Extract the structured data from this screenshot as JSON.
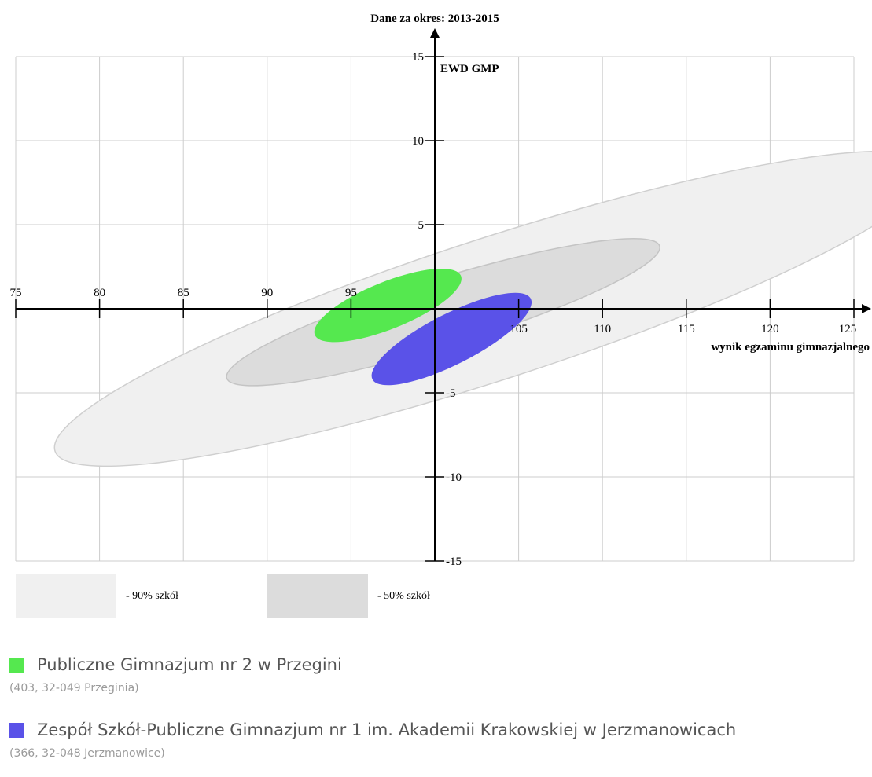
{
  "chart_data": {
    "type": "scatter",
    "title": "Dane za okres: 2013-2015",
    "xlabel": "wynik egzaminu gimnazjalnego",
    "ylabel": "EWD GMP",
    "xlim": [
      75,
      125
    ],
    "ylim": [
      -15,
      15
    ],
    "x_ticks": [
      75,
      80,
      85,
      90,
      95,
      105,
      110,
      115,
      120,
      125
    ],
    "y_ticks": [
      15,
      10,
      5,
      -5,
      -10,
      -15
    ],
    "grid": true,
    "regions": [
      {
        "name": "90% szkół",
        "color": "#f0f0f0",
        "stroke": "#cfcfcf",
        "cx": 103.5,
        "cy": 0,
        "rx": 27.5,
        "ry": 4.2,
        "angle_deg": -18
      },
      {
        "name": "50% szkół",
        "color": "#dcdcdc",
        "stroke": "#c4c4c4",
        "cx": 100.5,
        "cy": -0.2,
        "rx": 13.5,
        "ry": 2.0,
        "angle_deg": -17
      }
    ],
    "series": [
      {
        "name": "Publiczne Gimnazjum nr 2 w Przegini",
        "color": "#55e84f",
        "cx": 97.2,
        "cy": 0.2,
        "rx": 4.7,
        "ry": 1.4,
        "angle_deg": -22
      },
      {
        "name": "Zespół Szkół-Publiczne Gimnazjum nr 1 im. Akademii Krakowskiej w Jerzmanowicach",
        "color": "#5a52e8",
        "cx": 101.0,
        "cy": -1.8,
        "rx": 5.3,
        "ry": 1.5,
        "angle_deg": -27
      }
    ]
  },
  "legend": {
    "items": [
      {
        "label": "- 90% szkół",
        "color": "#f0f0f0"
      },
      {
        "label": "- 50% szkół",
        "color": "#dcdcdc"
      }
    ]
  },
  "schools": [
    {
      "name": "Publiczne Gimnazjum nr 2 w Przegini",
      "details": "(403, 32-049 Przeginia)",
      "color": "#55e84f"
    },
    {
      "name": "Zespół Szkół-Publiczne Gimnazjum nr 1 im. Akademii Krakowskiej w Jerzmanowicach",
      "details": "(366, 32-048 Jerzmanowice)",
      "color": "#5a52e8"
    }
  ]
}
